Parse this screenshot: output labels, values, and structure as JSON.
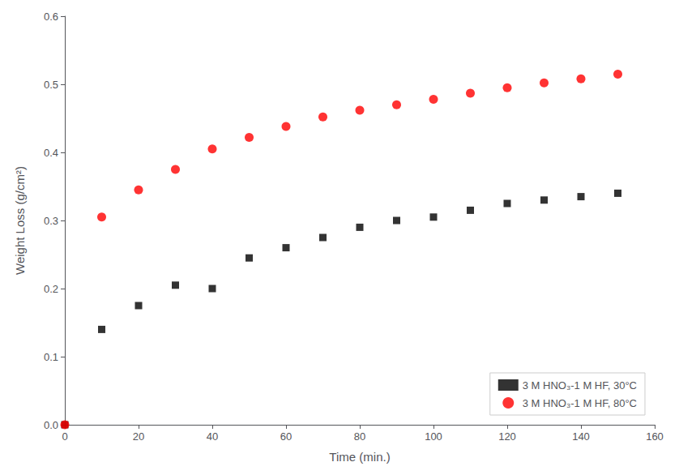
{
  "chart_data": {
    "type": "scatter",
    "xlabel": "Time (min.)",
    "ylabel": "Weight Loss (g/cm²)",
    "x": [
      0,
      10,
      20,
      30,
      40,
      50,
      60,
      70,
      80,
      90,
      100,
      110,
      120,
      130,
      140,
      150
    ],
    "series": [
      {
        "name": "3 M HNO₃-1 M HF, 30°C",
        "color": "#000000",
        "marker": "square",
        "values": [
          0.0,
          0.14,
          0.175,
          0.205,
          0.2,
          0.245,
          0.26,
          0.275,
          0.29,
          0.3,
          0.305,
          0.315,
          0.325,
          0.33,
          0.335,
          0.34
        ]
      },
      {
        "name": "3 M HNO₃-1 M HF, 80°C",
        "color": "#ff0000",
        "marker": "circle",
        "values": [
          0.0,
          0.305,
          0.345,
          0.375,
          0.405,
          0.422,
          0.438,
          0.452,
          0.462,
          0.47,
          0.478,
          0.487,
          0.495,
          0.502,
          0.508,
          0.515
        ]
      }
    ],
    "xlim": [
      0,
      160
    ],
    "ylim": [
      0.0,
      0.6
    ],
    "xticks": [
      0,
      20,
      40,
      60,
      80,
      100,
      120,
      140,
      160
    ],
    "yticks": [
      {
        "value": 0.0,
        "label": "0.0"
      },
      0.1,
      0.2,
      0.3,
      0.4,
      0.5,
      0.6
    ],
    "grid": false,
    "legend": "lower right"
  }
}
